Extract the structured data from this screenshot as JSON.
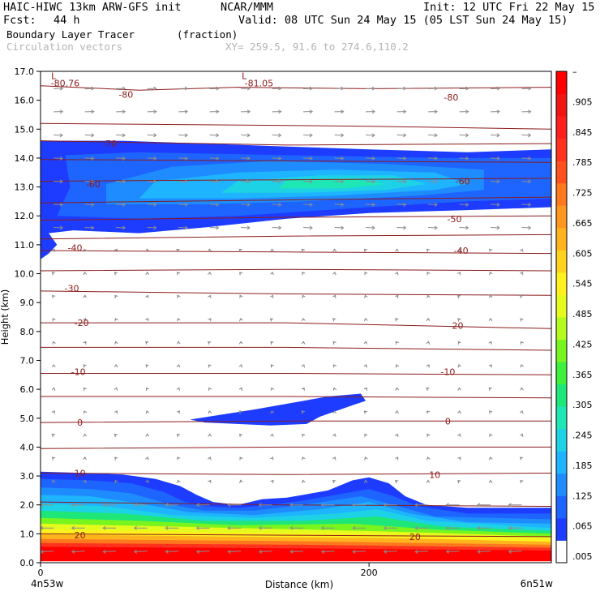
{
  "header": {
    "model": "HAIC-HIWC 13km ARW-GFS init",
    "org": "NCAR/MMM",
    "init": "Init: 12 UTC Fri 22 May 15",
    "fcst_label": "Fcst:",
    "fcst_value": "44 h",
    "valid": "Valid: 08 UTC Sun 24 May 15 (05 LST Sun 24 May 15)",
    "field_name": "Boundary Layer Tracer",
    "field_units": "(fraction)",
    "vector_label": "Circulation vectors",
    "xy_label": "XY= 259.5, 91.6 to 274.6,110.2"
  },
  "colors": {
    "contour": "#8b1a1a",
    "vector": "#8c8c8c",
    "palette": [
      "#ffffff",
      "#1e3cff",
      "#1e64ff",
      "#1e8cff",
      "#1eb4ff",
      "#1ed2e6",
      "#1ee6b4",
      "#1ee678",
      "#3cf03c",
      "#78f51e",
      "#b4fa1e",
      "#e6fa1e",
      "#fff01e",
      "#ffd21e",
      "#ffb41e",
      "#ff961e",
      "#ff781e",
      "#ff501e",
      "#ff321e",
      "#ff1e1e",
      "#f01414",
      "#ff0000"
    ]
  },
  "chart_data": {
    "type": "heatmap",
    "title": "Boundary Layer Tracer",
    "xlabel": "Distance (km)",
    "ylabel": "Height (km)",
    "xlim": [
      0,
      311
    ],
    "ylim": [
      0,
      17
    ],
    "x_ticks": [
      0,
      200
    ],
    "x_tick_labels": [
      "0",
      "200"
    ],
    "x_endpoint_labels": [
      "4n53w",
      "6n51w"
    ],
    "y_ticks": [
      0.0,
      1.0,
      2.0,
      3.0,
      4.0,
      5.0,
      6.0,
      7.0,
      8.0,
      9.0,
      10.0,
      11.0,
      12.0,
      13.0,
      14.0,
      15.0,
      16.0,
      17.0
    ],
    "y_tick_labels": [
      "0.0",
      "1.0",
      "2.0",
      "3.0",
      "4.0",
      "5.0",
      "6.0",
      "7.0",
      "8.0",
      "9.0",
      "10.0",
      "11.0",
      "12.0",
      "13.0",
      "14.0",
      "15.0",
      "16.0",
      "17.0"
    ],
    "colorbar": {
      "labels": [
        ".005",
        ".065",
        ".125",
        ".185",
        ".245",
        ".305",
        ".365",
        ".425",
        ".485",
        ".545",
        ".605",
        ".665",
        ".725",
        ".785",
        ".845",
        ".905",
        "–"
      ]
    },
    "contour_labels": [
      {
        "text": "-80.76",
        "x": 15,
        "y": 16.6
      },
      {
        "text": "-81.05",
        "x": 133,
        "y": 16.6
      },
      {
        "text": "L",
        "x": 8,
        "y": 16.85
      },
      {
        "text": "L",
        "x": 124,
        "y": 16.85
      },
      {
        "text": "-80",
        "x": 52,
        "y": 16.2
      },
      {
        "text": "-80",
        "x": 250,
        "y": 16.1
      },
      {
        "text": "-70",
        "x": 42,
        "y": 14.5
      },
      {
        "text": "-60",
        "x": 32,
        "y": 13.1
      },
      {
        "text": "-60",
        "x": 257,
        "y": 13.2
      },
      {
        "text": "-50",
        "x": 252,
        "y": 11.9
      },
      {
        "text": "-40",
        "x": 21,
        "y": 10.9
      },
      {
        "text": "-40",
        "x": 256,
        "y": 10.8
      },
      {
        "text": "-30",
        "x": 19,
        "y": 9.5
      },
      {
        "text": "-20",
        "x": 25,
        "y": 8.3
      },
      {
        "text": "-20",
        "x": 253,
        "y": 8.2
      },
      {
        "text": "-10",
        "x": 23,
        "y": 6.6
      },
      {
        "text": "-10",
        "x": 248,
        "y": 6.6
      },
      {
        "text": "0",
        "x": 24,
        "y": 4.85
      },
      {
        "text": "0",
        "x": 248,
        "y": 4.9
      },
      {
        "text": "10",
        "x": 24,
        "y": 3.1
      },
      {
        "text": "10",
        "x": 240,
        "y": 3.05
      },
      {
        "text": "20",
        "x": 24,
        "y": 0.95
      },
      {
        "text": "20",
        "x": 228,
        "y": 0.9
      }
    ]
  }
}
